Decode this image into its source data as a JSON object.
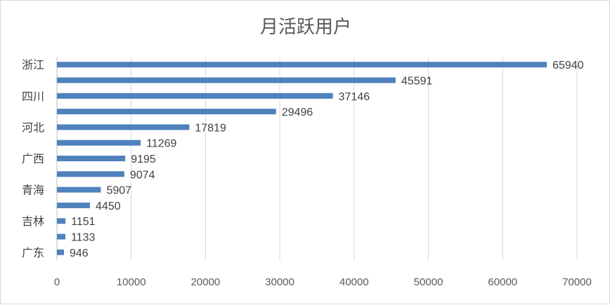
{
  "chart_data": {
    "type": "bar",
    "orientation": "horizontal",
    "title": "月活跃用户",
    "categories": [
      "浙江",
      "",
      "四川",
      "",
      "河北",
      "",
      "广西",
      "",
      "青海",
      "",
      "吉林",
      "",
      "广东"
    ],
    "values": [
      65940,
      45591,
      37146,
      29496,
      17819,
      11269,
      9195,
      9074,
      5907,
      4450,
      1151,
      1133,
      946
    ],
    "value_labels": [
      "65940",
      "45591",
      "37146",
      "29496",
      "17819",
      "11269",
      "9195",
      "9074",
      "5907",
      "4450",
      "1151",
      "1133",
      "946"
    ],
    "xlim": [
      0,
      70000
    ],
    "x_ticks": [
      "0",
      "10000",
      "20000",
      "30000",
      "40000",
      "50000",
      "60000",
      "70000"
    ],
    "grid": true,
    "legend": "none",
    "bar_color": "#4f81bd"
  }
}
